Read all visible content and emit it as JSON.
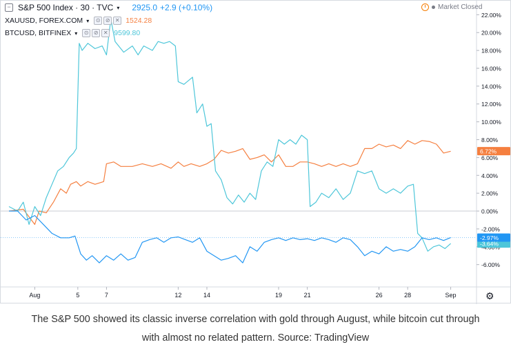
{
  "legend": {
    "main": {
      "symbol": "S&P 500 Index · 30 · TVC",
      "value": "2925.0",
      "change": "+2.9 (+0.10%)",
      "color": "#2196f3"
    },
    "s2": {
      "symbol": "XAUUSD, FOREX.COM",
      "value": "1524.28",
      "color": "#f57f3f"
    },
    "s3": {
      "symbol": "BTCUSD, BITFINEX",
      "value": "9599.80",
      "color": "#4dc6d9"
    },
    "controls": [
      "⊙",
      "⊘",
      "✕"
    ]
  },
  "market_status": "Market Closed",
  "caption_lines": [
    "The S&P 500 showed its classic inverse correlation with gold through August, while bitcoin cut through",
    "with almost no related pattern. Source: TradingView"
  ],
  "icons": {
    "settings": "gear-icon",
    "collapse": "collapse-icon",
    "clock": "clock-icon"
  },
  "chart_data": {
    "type": "line",
    "x_ticks": [
      {
        "label": "Aug",
        "x": 2
      },
      {
        "label": "5",
        "x": 5
      },
      {
        "label": "7",
        "x": 7
      },
      {
        "label": "12",
        "x": 12
      },
      {
        "label": "14",
        "x": 14
      },
      {
        "label": "19",
        "x": 19
      },
      {
        "label": "21",
        "x": 21
      },
      {
        "label": "26",
        "x": 26
      },
      {
        "label": "28",
        "x": 28
      },
      {
        "label": "Sep",
        "x": 31
      }
    ],
    "y_ticks": [
      "22.00%",
      "20.00%",
      "18.00%",
      "16.00%",
      "14.00%",
      "12.00%",
      "10.00%",
      "8.00%",
      "6.00%",
      "4.00%",
      "2.00%",
      "0.00%",
      "-2.00%",
      "-4.00%",
      "-6.00%"
    ],
    "y_tick_values": [
      22,
      20,
      18,
      16,
      14,
      12,
      10,
      8,
      6,
      4,
      2,
      0,
      -2,
      -4,
      -6
    ],
    "ylim": [
      -8.5,
      22.8
    ],
    "xlim": [
      0.2,
      32.8
    ],
    "series": [
      {
        "name": "XAUUSD",
        "color": "#f57f3f",
        "last_label": "6.72%",
        "last_value": 6.72,
        "x": [
          0.2,
          1.2,
          2.0,
          2.3,
          2.8,
          3.3,
          3.8,
          4.2,
          4.5,
          4.9,
          5.2,
          5.7,
          6.2,
          6.8,
          7.0,
          7.5,
          8.0,
          8.8,
          9.5,
          10.2,
          10.8,
          11.5,
          12.0,
          12.4,
          12.9,
          13.5,
          14.0,
          14.5,
          15.0,
          15.5,
          16.0,
          16.5,
          17.0,
          17.5,
          18.0,
          18.5,
          19.0,
          19.5,
          20.0,
          20.5,
          21.0,
          21.5,
          22.0,
          22.5,
          23.0,
          23.5,
          24.0,
          24.5,
          25.0,
          25.5,
          26.0,
          26.5,
          27.0,
          27.5,
          28.0,
          28.5,
          29.0,
          29.5,
          30.0,
          30.5,
          31.0
        ],
        "y": [
          0,
          0.2,
          -1.5,
          0,
          -0.2,
          1.0,
          2.5,
          2.0,
          3.0,
          3.3,
          2.8,
          3.3,
          3.0,
          3.3,
          5.3,
          5.5,
          5.0,
          5.0,
          5.3,
          5.0,
          5.3,
          4.8,
          5.5,
          5.0,
          5.3,
          5.0,
          5.3,
          5.8,
          6.8,
          6.5,
          6.7,
          7.0,
          5.8,
          6.0,
          6.3,
          5.5,
          6.3,
          5.0,
          5.0,
          5.5,
          5.5,
          5.3,
          5.0,
          5.3,
          5.0,
          5.3,
          5.0,
          5.3,
          7.0,
          7.0,
          7.5,
          7.2,
          7.4,
          7.0,
          7.9,
          7.5,
          7.9,
          7.8,
          7.5,
          6.5,
          6.7
        ]
      },
      {
        "name": "BTCUSD",
        "color": "#4dc6d9",
        "last_label": "-3.64%",
        "last_value": -3.64,
        "x": [
          0.2,
          0.8,
          1.2,
          1.6,
          2.0,
          2.4,
          2.8,
          3.2,
          3.6,
          4.0,
          4.4,
          4.7,
          4.9,
          5.1,
          5.3,
          5.7,
          6.2,
          6.7,
          7.0,
          7.3,
          7.6,
          8.2,
          8.8,
          9.2,
          9.6,
          10.2,
          10.6,
          11.0,
          11.4,
          11.8,
          12.0,
          12.4,
          13.0,
          13.3,
          13.7,
          14.0,
          14.3,
          14.6,
          15.0,
          15.4,
          15.8,
          16.2,
          16.6,
          17.0,
          17.4,
          17.8,
          18.2,
          18.6,
          19.0,
          19.4,
          19.8,
          20.2,
          20.6,
          21.0,
          21.2,
          21.6,
          22.0,
          22.5,
          23.0,
          23.5,
          24.0,
          24.5,
          25.0,
          25.5,
          26.0,
          26.5,
          27.0,
          27.5,
          28.0,
          28.4,
          28.7,
          29.0,
          29.4,
          29.8,
          30.2,
          30.6,
          31.0
        ],
        "y": [
          0.5,
          0,
          1.0,
          -1.5,
          0.5,
          -0.5,
          1.5,
          3.0,
          4.5,
          5.0,
          6.0,
          6.5,
          7.0,
          18.8,
          18.0,
          18.8,
          18.2,
          18.5,
          17.5,
          21.5,
          19.0,
          17.8,
          18.5,
          17.5,
          18.5,
          18.0,
          19.0,
          18.8,
          19.0,
          18.5,
          14.5,
          14.2,
          15.0,
          11.0,
          12.0,
          9.5,
          9.8,
          4.5,
          3.5,
          1.5,
          0.8,
          1.8,
          1.0,
          2.0,
          1.3,
          4.5,
          5.5,
          5.0,
          8.0,
          7.5,
          8.0,
          7.5,
          8.5,
          8.0,
          0.5,
          1.0,
          2.0,
          1.5,
          2.5,
          1.3,
          2.0,
          4.5,
          4.2,
          4.5,
          2.5,
          2.0,
          2.5,
          2.0,
          2.8,
          3.0,
          -2.5,
          -3.0,
          -4.5,
          -4.0,
          -3.8,
          -4.2,
          -3.64
        ]
      },
      {
        "name": "S&P 500 Index",
        "color": "#2196f3",
        "last_label": "-2.97%",
        "last_value": -2.97,
        "x": [
          0.2,
          0.8,
          1.4,
          2.0,
          2.6,
          3.2,
          3.8,
          4.4,
          4.8,
          5.2,
          5.6,
          6.0,
          6.5,
          7.0,
          7.5,
          8.0,
          8.5,
          9.0,
          9.5,
          10.0,
          10.5,
          11.0,
          11.5,
          12.0,
          12.5,
          13.0,
          13.5,
          14.0,
          14.5,
          15.0,
          15.5,
          16.0,
          16.5,
          17.0,
          17.5,
          18.0,
          18.5,
          19.0,
          19.5,
          20.0,
          20.5,
          21.0,
          21.5,
          22.0,
          22.5,
          23.0,
          23.5,
          24.0,
          24.5,
          25.0,
          25.5,
          26.0,
          26.5,
          27.0,
          27.5,
          28.0,
          28.5,
          29.0,
          29.5,
          30.0,
          30.5,
          31.0
        ],
        "y": [
          0,
          0,
          -1.0,
          -0.5,
          -1.5,
          -2.5,
          -3.0,
          -3.0,
          -2.8,
          -4.8,
          -5.5,
          -5.0,
          -5.8,
          -5.0,
          -5.5,
          -4.8,
          -5.5,
          -5.2,
          -3.5,
          -3.2,
          -3.0,
          -3.5,
          -3.0,
          -2.9,
          -3.2,
          -3.5,
          -3.0,
          -4.5,
          -5.0,
          -5.5,
          -5.3,
          -5.0,
          -5.8,
          -4.0,
          -4.5,
          -3.5,
          -3.2,
          -3.0,
          -3.3,
          -3.0,
          -3.2,
          -3.1,
          -3.3,
          -3.0,
          -3.2,
          -3.5,
          -3.0,
          -3.2,
          -4.0,
          -5.0,
          -4.5,
          -4.8,
          -4.0,
          -4.5,
          -4.3,
          -4.5,
          -4.0,
          -3.0,
          -3.2,
          -3.0,
          -3.3,
          -2.97
        ]
      }
    ]
  }
}
